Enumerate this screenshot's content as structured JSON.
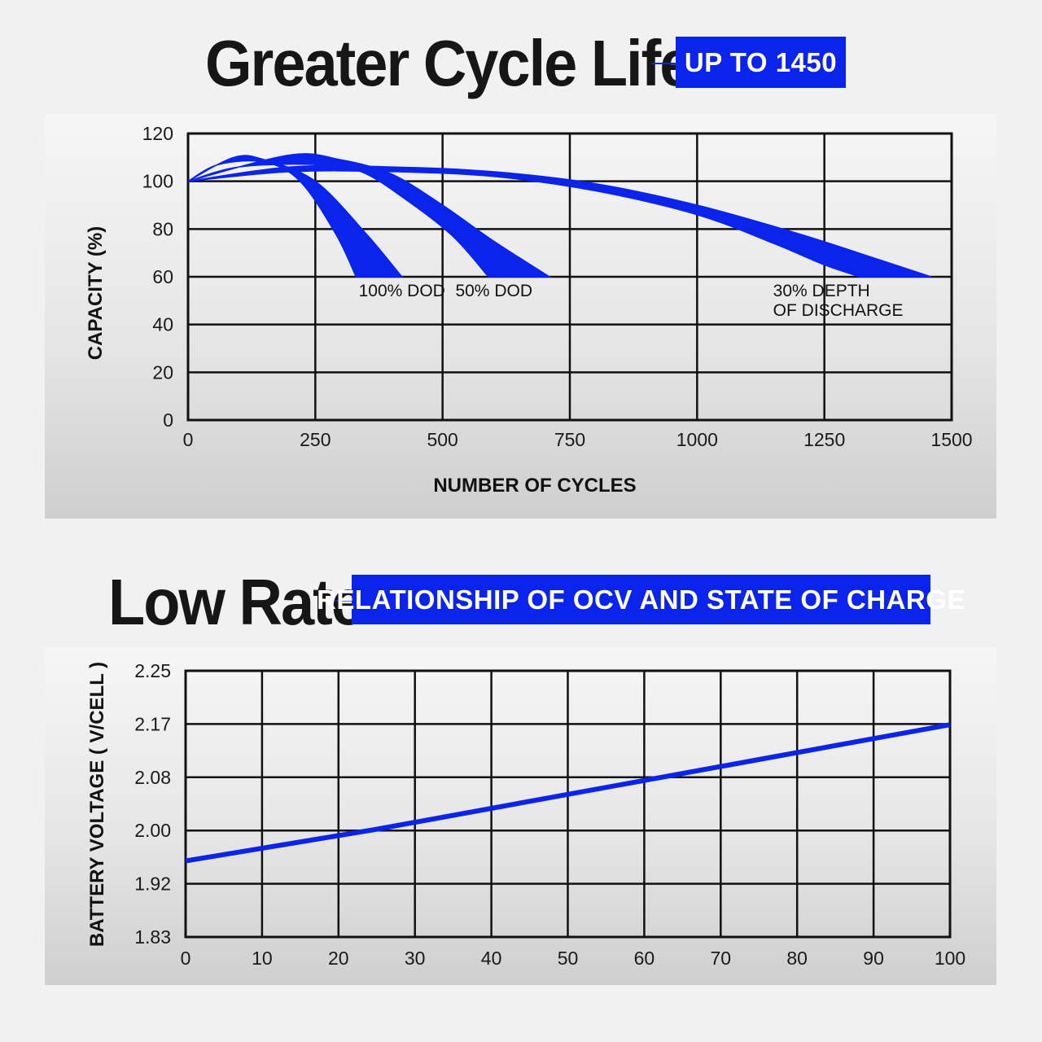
{
  "header1": {
    "title": "Greater Cycle Life",
    "badge": "UP TO 1450"
  },
  "header2": {
    "title": "Low Rate",
    "badge": "RELATIONSHIP OF OCV AND STATE OF CHARGE"
  },
  "colors": {
    "accent": "#0a24ec",
    "text": "#161616",
    "grid": "#111111"
  },
  "chart_data": [
    {
      "type": "area",
      "title": "Greater Cycle Life",
      "xlabel": "NUMBER OF CYCLES",
      "ylabel": "CAPACITY (%)",
      "xlim": [
        0,
        1500
      ],
      "ylim": [
        0,
        120
      ],
      "x_ticks": [
        "0",
        "250",
        "500",
        "750",
        "1000",
        "1250",
        "1500"
      ],
      "y_ticks": [
        "0",
        "20",
        "40",
        "60",
        "80",
        "100",
        "120"
      ],
      "grid": true,
      "series": [
        {
          "name": "100% DOD",
          "upper": [
            [
              0,
              100
            ],
            [
              90,
              110
            ],
            [
              150,
              109
            ],
            [
              250,
              100
            ],
            [
              350,
              78
            ],
            [
              420,
              60
            ]
          ],
          "lower": [
            [
              0,
              100
            ],
            [
              60,
              107
            ],
            [
              150,
              108
            ],
            [
              220,
              100
            ],
            [
              290,
              78
            ],
            [
              330,
              60
            ]
          ]
        },
        {
          "name": "50% DOD",
          "upper": [
            [
              0,
              100
            ],
            [
              200,
              111
            ],
            [
              300,
              109
            ],
            [
              400,
              103
            ],
            [
              500,
              90
            ],
            [
              600,
              75
            ],
            [
              710,
              60
            ]
          ],
          "lower": [
            [
              0,
              100
            ],
            [
              100,
              106
            ],
            [
              250,
              107
            ],
            [
              340,
              104
            ],
            [
              430,
              92
            ],
            [
              520,
              77
            ],
            [
              590,
              60
            ]
          ]
        },
        {
          "name": "30% DEPTH OF DISCHARGE",
          "upper": [
            [
              0,
              100
            ],
            [
              200,
              106
            ],
            [
              400,
              106
            ],
            [
              600,
              104
            ],
            [
              800,
              99
            ],
            [
              1000,
              90
            ],
            [
              1200,
              78
            ],
            [
              1360,
              67
            ],
            [
              1460,
              60
            ]
          ],
          "lower": [
            [
              0,
              100
            ],
            [
              200,
              104
            ],
            [
              400,
              104
            ],
            [
              600,
              102
            ],
            [
              800,
              96
            ],
            [
              1000,
              86
            ],
            [
              1150,
              74
            ],
            [
              1250,
              65
            ],
            [
              1320,
              60
            ]
          ]
        }
      ],
      "annotations": [
        {
          "text": "100% DOD",
          "x": 380,
          "y": 55
        },
        {
          "text": "50% DOD",
          "x": 650,
          "y": 55
        },
        {
          "text": "30% DEPTH",
          "x": 1290,
          "y": 55
        },
        {
          "text": "OF DISCHARGE",
          "x": 1290,
          "y": 47
        }
      ]
    },
    {
      "type": "line",
      "title": "RELATIONSHIP OF OCV AND STATE OF CHARGE",
      "xlabel": "",
      "ylabel": "BATTERY VOLTAGE ( V/CELL )",
      "xlim": [
        0,
        100
      ],
      "ylim": [
        1.83,
        2.25
      ],
      "x_ticks": [
        "0",
        "10",
        "20",
        "30",
        "40",
        "50",
        "60",
        "70",
        "80",
        "90",
        "100"
      ],
      "y_ticks": [
        "1.83",
        "1.92",
        "2.00",
        "2.08",
        "2.17",
        "2.25"
      ],
      "grid": true,
      "series": [
        {
          "x": [
            0,
            25,
            50,
            75,
            100
          ],
          "values": [
            1.95,
            2.0,
            2.055,
            2.11,
            2.165
          ]
        }
      ]
    }
  ]
}
